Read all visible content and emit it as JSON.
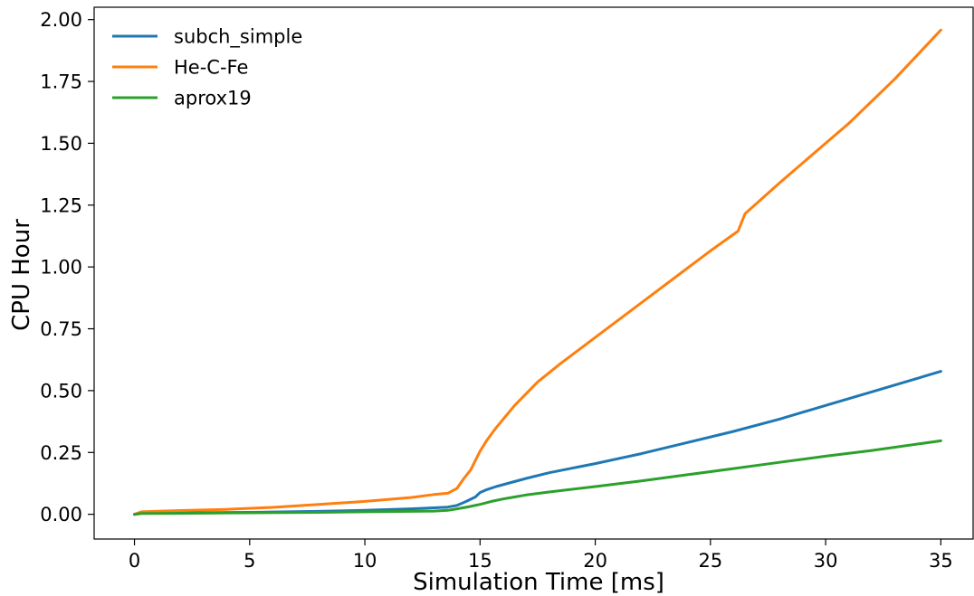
{
  "chart_data": {
    "type": "line",
    "title": "",
    "xlabel": "Simulation Time [ms]",
    "ylabel": "CPU Hour",
    "xlim": [
      -1.75,
      36.4
    ],
    "ylim": [
      -0.1,
      2.05
    ],
    "x_ticks": [
      0,
      5,
      10,
      15,
      20,
      25,
      30,
      35
    ],
    "x_tick_labels": [
      "0",
      "5",
      "10",
      "15",
      "20",
      "25",
      "30",
      "35"
    ],
    "y_ticks": [
      0.0,
      0.25,
      0.5,
      0.75,
      1.0,
      1.25,
      1.5,
      1.75,
      2.0
    ],
    "y_tick_labels": [
      "0.00",
      "0.25",
      "0.50",
      "0.75",
      "1.00",
      "1.25",
      "1.50",
      "1.75",
      "2.00"
    ],
    "grid": false,
    "legend_position": "top-left",
    "series": [
      {
        "name": "subch_simple",
        "color": "#1f77b4",
        "x": [
          0,
          0.3,
          2,
          5,
          8,
          10,
          12,
          13,
          13.6,
          14,
          14.4,
          14.8,
          15,
          15.3,
          15.7,
          16.2,
          17,
          18,
          20,
          22,
          24,
          26,
          28,
          30,
          32,
          35
        ],
        "y": [
          0,
          0.004,
          0.006,
          0.008,
          0.012,
          0.016,
          0.022,
          0.026,
          0.029,
          0.036,
          0.052,
          0.07,
          0.088,
          0.1,
          0.112,
          0.125,
          0.145,
          0.168,
          0.205,
          0.245,
          0.29,
          0.335,
          0.385,
          0.44,
          0.495,
          0.578
        ]
      },
      {
        "name": "He-C-Fe",
        "color": "#ff7f0e",
        "x": [
          0,
          0.3,
          2,
          4,
          6,
          8,
          10,
          12,
          13,
          13.6,
          14,
          14.3,
          14.6,
          15,
          15.3,
          15.7,
          16.5,
          17.5,
          18.5,
          20,
          22,
          24,
          25,
          26.2,
          26.5,
          28,
          30,
          31,
          33,
          35
        ],
        "y": [
          0,
          0.01,
          0.015,
          0.02,
          0.028,
          0.04,
          0.052,
          0.068,
          0.08,
          0.085,
          0.105,
          0.145,
          0.18,
          0.255,
          0.3,
          0.35,
          0.44,
          0.535,
          0.61,
          0.715,
          0.855,
          0.995,
          1.065,
          1.145,
          1.215,
          1.34,
          1.5,
          1.58,
          1.76,
          1.958
        ]
      },
      {
        "name": "aprox19",
        "color": "#2ca02c",
        "x": [
          0,
          0.3,
          2,
          5,
          8,
          10,
          12,
          13,
          13.6,
          14,
          14.5,
          15,
          15.5,
          16,
          16.5,
          17,
          18,
          20,
          22,
          24,
          26,
          28,
          30,
          32,
          35
        ],
        "y": [
          0,
          0.003,
          0.004,
          0.006,
          0.008,
          0.01,
          0.012,
          0.013,
          0.016,
          0.022,
          0.03,
          0.04,
          0.052,
          0.062,
          0.07,
          0.078,
          0.09,
          0.112,
          0.135,
          0.16,
          0.185,
          0.21,
          0.235,
          0.258,
          0.297
        ]
      }
    ]
  }
}
